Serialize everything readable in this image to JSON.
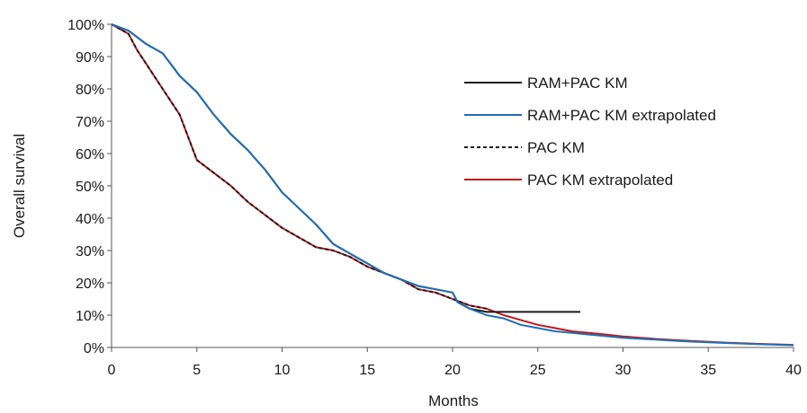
{
  "chart_data": {
    "type": "line",
    "title": "",
    "xlabel": "Months",
    "ylabel": "Overall survival",
    "xlim": [
      0,
      40
    ],
    "ylim": [
      0,
      100
    ],
    "x_ticks": [
      0,
      5,
      10,
      15,
      20,
      25,
      30,
      35,
      40
    ],
    "x_tick_labels": [
      "0",
      "5",
      "10",
      "15",
      "20",
      "25",
      "30",
      "35",
      "40"
    ],
    "y_ticks": [
      0,
      10,
      20,
      30,
      40,
      50,
      60,
      70,
      80,
      90,
      100
    ],
    "y_tick_labels": [
      "0%",
      "10%",
      "20%",
      "30%",
      "40%",
      "50%",
      "60%",
      "70%",
      "80%",
      "90%",
      "100%"
    ],
    "grid": false,
    "legend_position": "right",
    "series": [
      {
        "name": "RAM+PAC KM",
        "color": "#1a1a1a",
        "style": "solid",
        "x": [
          0,
          1,
          2,
          3,
          4,
          5,
          6,
          7,
          8,
          9,
          10,
          11,
          12,
          13,
          14,
          15,
          16,
          17,
          18,
          19,
          20,
          20.3,
          21,
          22,
          23,
          24,
          25,
          26,
          27.5
        ],
        "y": [
          100,
          98,
          94,
          91,
          84,
          79,
          72,
          66,
          61,
          55,
          48,
          43,
          38,
          32,
          29,
          26,
          23,
          21,
          19,
          18,
          17,
          14,
          12,
          11,
          11,
          11,
          11,
          11,
          11
        ]
      },
      {
        "name": "RAM+PAC KM extrapolated",
        "color": "#1f6fb5",
        "style": "solid",
        "x": [
          0,
          1,
          2,
          3,
          4,
          5,
          6,
          7,
          8,
          9,
          10,
          11,
          12,
          13,
          14,
          15,
          16,
          17,
          18,
          19,
          20,
          20.3,
          21,
          22,
          23,
          24,
          25,
          26,
          27,
          28,
          29,
          30,
          32,
          34,
          36,
          38,
          40
        ],
        "y": [
          100,
          98,
          94,
          91,
          84,
          79,
          72,
          66,
          61,
          55,
          48,
          43,
          38,
          32,
          29,
          26,
          23,
          21,
          19,
          18,
          17,
          14,
          12,
          10,
          9,
          7,
          6,
          5,
          4.5,
          4,
          3.5,
          3,
          2.4,
          1.8,
          1.4,
          1,
          0.7
        ]
      },
      {
        "name": "PAC KM",
        "color": "#1a1a1a",
        "style": "dashed",
        "x": [
          0,
          1,
          1.5,
          2,
          3,
          4,
          4.5,
          5,
          6,
          7,
          8,
          9,
          10,
          11,
          12,
          13,
          14,
          15,
          16,
          17,
          18,
          19,
          20,
          21,
          22
        ],
        "y": [
          100,
          97,
          92,
          88,
          80,
          72,
          65,
          58,
          54,
          50,
          45,
          41,
          37,
          34,
          31,
          30,
          28,
          25,
          23,
          21,
          18,
          17,
          15,
          13,
          12
        ]
      },
      {
        "name": "PAC KM extrapolated",
        "color": "#c0181c",
        "style": "solid",
        "x": [
          0,
          1,
          1.5,
          2,
          3,
          4,
          4.5,
          5,
          6,
          7,
          8,
          9,
          10,
          11,
          12,
          13,
          14,
          15,
          16,
          17,
          18,
          19,
          20,
          21,
          22,
          23,
          24,
          25,
          26,
          27,
          28,
          29,
          30,
          32,
          34,
          36,
          38,
          40
        ],
        "y": [
          100,
          97,
          92,
          88,
          80,
          72,
          65,
          58,
          54,
          50,
          45,
          41,
          37,
          34,
          31,
          30,
          28,
          25,
          23,
          21,
          18,
          17,
          15,
          13,
          12,
          10,
          8.5,
          7,
          6,
          5,
          4.5,
          4,
          3.4,
          2.6,
          2,
          1.5,
          1.1,
          0.8
        ]
      }
    ]
  }
}
